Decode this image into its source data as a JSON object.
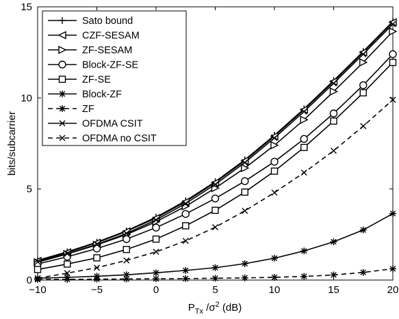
{
  "chart_data": {
    "type": "line",
    "title": "",
    "xlabel": "P",
    "xlabel_sub": "Tx",
    "xlabel_rest": " /σ",
    "xlabel_sup": "2",
    "xlabel_unit": " (dB)",
    "ylabel": "bits/subcarrier",
    "xlim": [
      -10,
      20
    ],
    "ylim": [
      0,
      15
    ],
    "xticks": [
      "−10",
      "−5",
      "0",
      "5",
      "10",
      "15",
      "20"
    ],
    "yticks": [
      "0",
      "5",
      "10",
      "15"
    ],
    "grid": false,
    "legend_position": "top-left",
    "x": [
      -10,
      -7.5,
      -5,
      -2.5,
      0,
      2.5,
      5,
      7.5,
      10,
      12.5,
      15,
      17.5,
      20
    ],
    "series": [
      {
        "name": "Sato bound",
        "marker": "plus",
        "dash": "solid",
        "values": [
          1.08,
          1.55,
          2.08,
          2.7,
          3.45,
          4.35,
          5.4,
          6.6,
          7.95,
          9.4,
          10.95,
          12.55,
          14.2
        ]
      },
      {
        "name": "CZF-SESAM",
        "marker": "triangle-left",
        "dash": "solid",
        "values": [
          1.05,
          1.52,
          2.05,
          2.67,
          3.4,
          4.3,
          5.35,
          6.55,
          7.9,
          9.35,
          10.9,
          12.5,
          14.15
        ]
      },
      {
        "name": "ZF-SESAM",
        "marker": "triangle-right",
        "dash": "solid",
        "values": [
          0.98,
          1.43,
          1.93,
          2.5,
          3.2,
          4.05,
          5.05,
          6.15,
          7.4,
          8.8,
          10.35,
          11.95,
          13.65
        ]
      },
      {
        "name": "Block-ZF-SE",
        "marker": "circle",
        "dash": "solid",
        "values": [
          0.88,
          1.28,
          1.73,
          2.25,
          2.88,
          3.63,
          4.48,
          5.43,
          6.5,
          7.75,
          9.15,
          10.7,
          12.4
        ]
      },
      {
        "name": "ZF-SE",
        "marker": "square",
        "dash": "solid",
        "values": [
          0.58,
          0.88,
          1.22,
          1.68,
          2.25,
          2.98,
          3.83,
          4.83,
          5.98,
          7.28,
          8.73,
          10.28,
          11.95
        ]
      },
      {
        "name": "Block-ZF",
        "marker": "star",
        "dash": "solid",
        "values": [
          0.1,
          0.15,
          0.21,
          0.29,
          0.4,
          0.53,
          0.68,
          0.9,
          1.2,
          1.6,
          2.1,
          2.75,
          3.65
        ]
      },
      {
        "name": "ZF",
        "marker": "star",
        "dash": "dashed",
        "values": [
          0.03,
          0.04,
          0.05,
          0.06,
          0.07,
          0.08,
          0.1,
          0.12,
          0.15,
          0.2,
          0.28,
          0.42,
          0.62
        ]
      },
      {
        "name": "OFDMA CSIT",
        "marker": "x",
        "dash": "solid",
        "values": [
          1.0,
          1.45,
          1.96,
          2.56,
          3.3,
          4.2,
          5.25,
          6.45,
          7.8,
          9.25,
          10.8,
          12.4,
          14.05
        ]
      },
      {
        "name": "OFDMA no CSIT",
        "marker": "x",
        "dash": "dashed",
        "values": [
          0.1,
          0.38,
          0.68,
          1.08,
          1.55,
          2.15,
          2.9,
          3.8,
          4.8,
          5.9,
          7.1,
          8.45,
          9.9
        ]
      }
    ]
  }
}
